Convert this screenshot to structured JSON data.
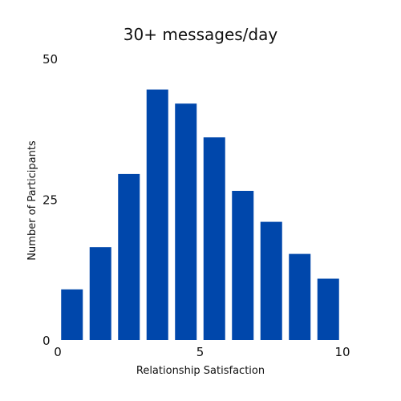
{
  "chart_data": {
    "type": "bar",
    "title": "30+ messages/day",
    "xlabel": "Relationship Satisfaction",
    "ylabel": "Number of Participants",
    "x": [
      0.5,
      1.5,
      2.5,
      3.5,
      4.5,
      5.5,
      6.5,
      7.5,
      8.5,
      9.5
    ],
    "values": [
      9,
      16.5,
      29.5,
      44.5,
      42,
      36,
      26.5,
      21,
      15.3,
      10.9
    ],
    "xlim": [
      0,
      10
    ],
    "ylim": [
      0,
      50
    ],
    "x_ticks": [
      "0",
      "5",
      "10"
    ],
    "y_ticks": [
      "0",
      "25",
      "50"
    ],
    "grid": false,
    "bar_color": "#0047AB"
  }
}
